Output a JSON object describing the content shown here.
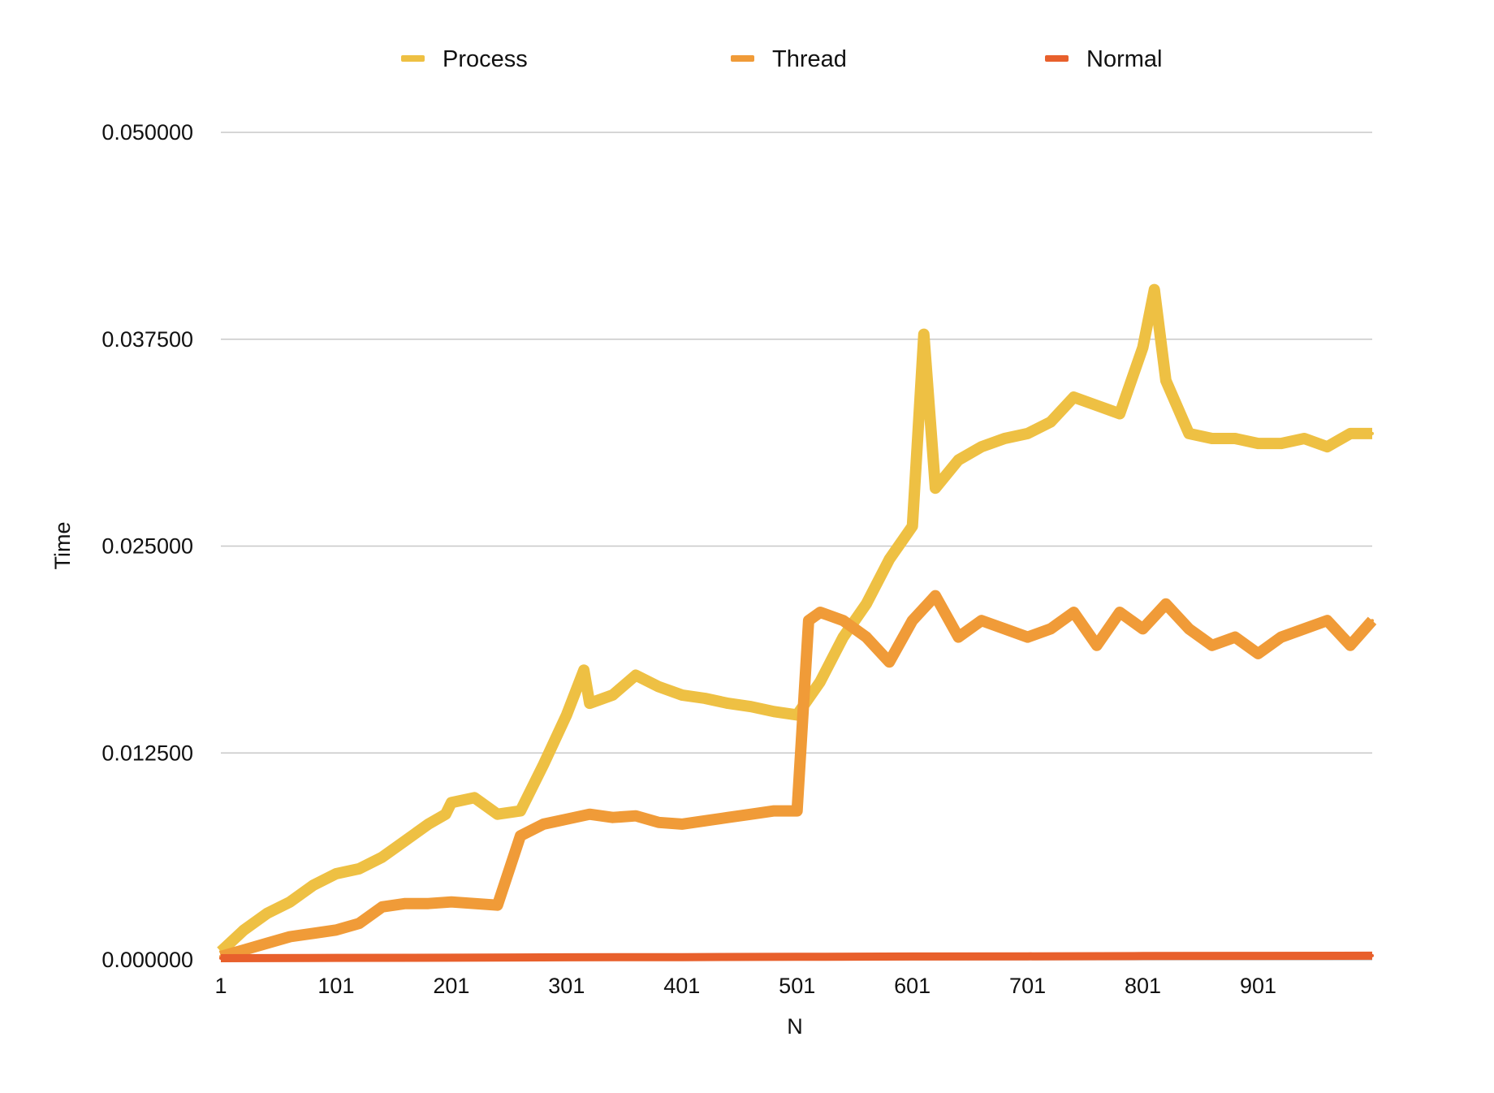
{
  "chart_data": {
    "type": "line",
    "xlabel": "N",
    "ylabel": "Time",
    "xlim": [
      1,
      1000
    ],
    "ylim": [
      0,
      0.05
    ],
    "x_ticks": [
      1,
      101,
      201,
      301,
      401,
      501,
      601,
      701,
      801,
      901
    ],
    "x_tick_labels": [
      "1",
      "101",
      "201",
      "301",
      "401",
      "501",
      "601",
      "701",
      "801",
      "901"
    ],
    "y_ticks": [
      0,
      0.0125,
      0.025,
      0.0375,
      0.05
    ],
    "y_tick_labels": [
      "0.000000",
      "0.012500",
      "0.025000",
      "0.037500",
      "0.050000"
    ],
    "grid": true,
    "legend_position": "top-center",
    "series": [
      {
        "name": "Process",
        "color": "#EEC043",
        "x": [
          1,
          21,
          41,
          61,
          81,
          101,
          121,
          141,
          161,
          181,
          196,
          201,
          221,
          241,
          261,
          281,
          301,
          316,
          321,
          341,
          361,
          381,
          401,
          421,
          441,
          461,
          481,
          501,
          521,
          541,
          561,
          581,
          601,
          611,
          621,
          641,
          661,
          681,
          701,
          721,
          741,
          761,
          781,
          801,
          811,
          821,
          841,
          861,
          881,
          901,
          921,
          941,
          961,
          981,
          1000
        ],
        "values": [
          0.0005,
          0.0018,
          0.0028,
          0.0035,
          0.0045,
          0.0052,
          0.0055,
          0.0062,
          0.0072,
          0.0082,
          0.0088,
          0.0095,
          0.0098,
          0.0088,
          0.009,
          0.0118,
          0.0148,
          0.0175,
          0.0155,
          0.016,
          0.0172,
          0.0165,
          0.016,
          0.0158,
          0.0155,
          0.0153,
          0.015,
          0.0148,
          0.0168,
          0.0195,
          0.0215,
          0.0242,
          0.0262,
          0.0378,
          0.0285,
          0.0302,
          0.031,
          0.0315,
          0.0318,
          0.0325,
          0.034,
          0.0335,
          0.033,
          0.037,
          0.0405,
          0.035,
          0.0318,
          0.0315,
          0.0315,
          0.0312,
          0.0312,
          0.0315,
          0.031,
          0.0318,
          0.0318
        ]
      },
      {
        "name": "Thread",
        "color": "#F09B38",
        "x": [
          1,
          21,
          41,
          61,
          81,
          101,
          121,
          141,
          161,
          181,
          201,
          221,
          241,
          261,
          281,
          301,
          321,
          341,
          361,
          381,
          401,
          421,
          441,
          461,
          481,
          501,
          511,
          521,
          541,
          561,
          581,
          601,
          621,
          641,
          661,
          681,
          701,
          721,
          741,
          761,
          781,
          801,
          821,
          841,
          861,
          881,
          901,
          921,
          941,
          961,
          981,
          1000
        ],
        "values": [
          0.0002,
          0.0006,
          0.001,
          0.0014,
          0.0016,
          0.0018,
          0.0022,
          0.0032,
          0.0034,
          0.0034,
          0.0035,
          0.0034,
          0.0033,
          0.0075,
          0.0082,
          0.0085,
          0.0088,
          0.0086,
          0.0087,
          0.0083,
          0.0082,
          0.0084,
          0.0086,
          0.0088,
          0.009,
          0.009,
          0.0205,
          0.021,
          0.0205,
          0.0195,
          0.018,
          0.0205,
          0.022,
          0.0195,
          0.0205,
          0.02,
          0.0195,
          0.02,
          0.021,
          0.019,
          0.021,
          0.02,
          0.0215,
          0.02,
          0.019,
          0.0195,
          0.0185,
          0.0195,
          0.02,
          0.0205,
          0.019,
          0.0205
        ]
      },
      {
        "name": "Normal",
        "color": "#E8602C",
        "x": [
          1,
          101,
          201,
          301,
          401,
          501,
          601,
          701,
          801,
          901,
          1000
        ],
        "values": [
          0.0001,
          0.00012,
          0.00013,
          0.00015,
          0.00016,
          0.00018,
          0.0002,
          0.00021,
          0.00023,
          0.00024,
          0.00025
        ]
      }
    ]
  }
}
